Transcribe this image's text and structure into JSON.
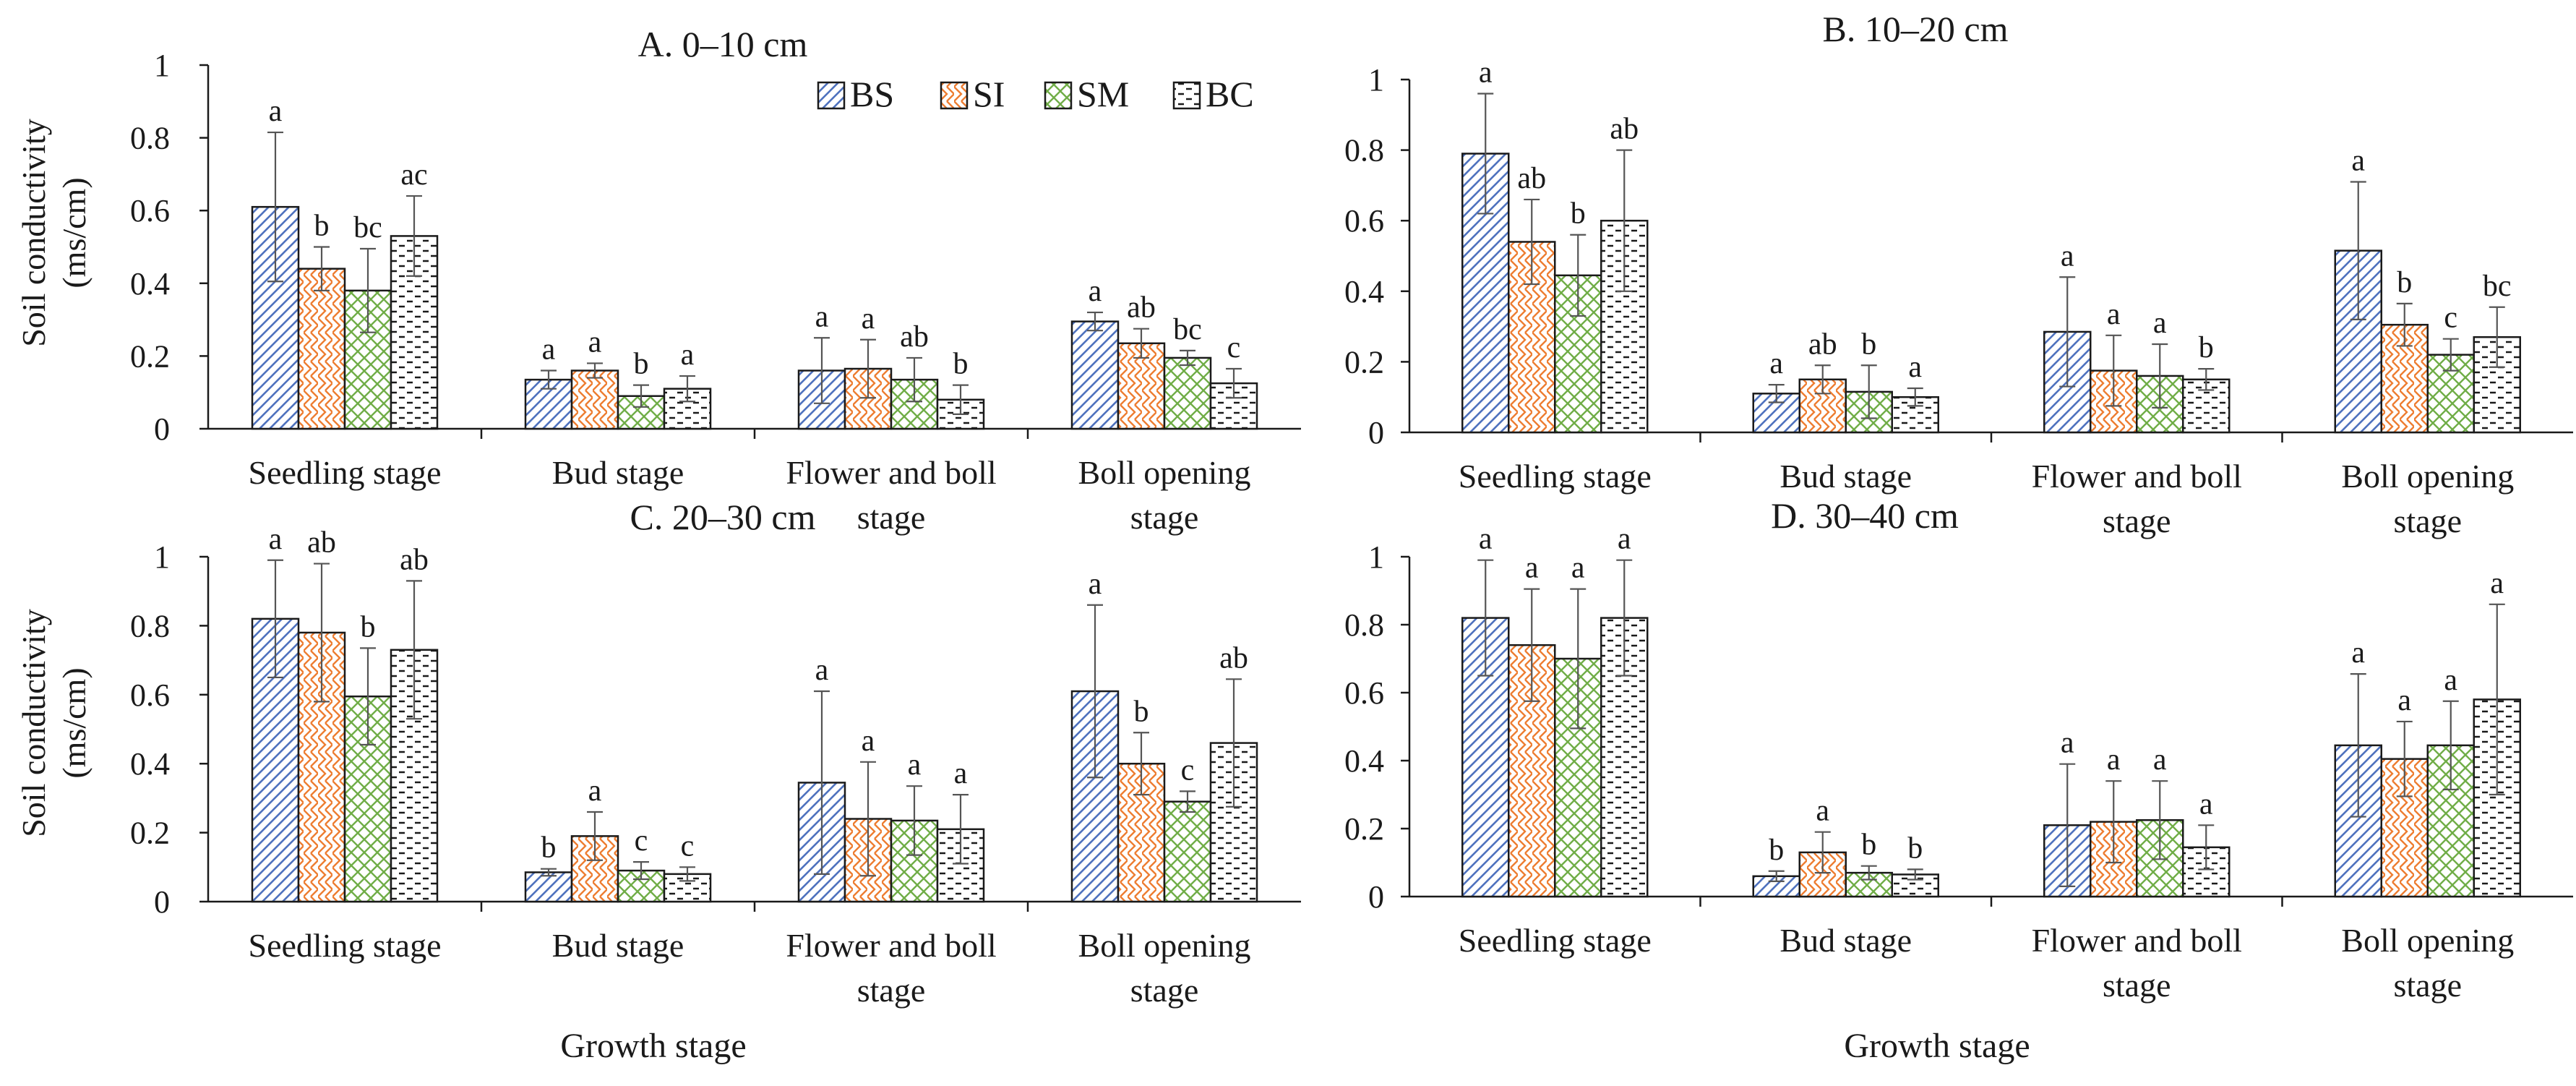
{
  "figure": {
    "ylabel_line1": "Soil conductivity",
    "ylabel_line2": "(ms/cm)",
    "xlabel": "Growth stage"
  },
  "legend": {
    "position": "inside top of panel A",
    "items": [
      {
        "key": "BS",
        "label": "BS",
        "color": "#4f72be",
        "pattern": "diagonal-stripes"
      },
      {
        "key": "SI",
        "label": "SI",
        "color": "#ed7d31",
        "pattern": "zigzag"
      },
      {
        "key": "SM",
        "label": "SM",
        "color": "#70ad47",
        "pattern": "weave"
      },
      {
        "key": "BC",
        "label": "BC",
        "color": "#1a1a1a",
        "pattern": "horizontal-dashes"
      }
    ]
  },
  "chart_data": [
    {
      "type": "bar",
      "title": "A. 0–10 cm",
      "categories": [
        "Seedling stage",
        "Bud stage",
        "Flower and boll stage",
        "Boll opening stage"
      ],
      "ylabel": "Soil conductivity (ms/cm)",
      "xlabel": "",
      "ylim": [
        0,
        1
      ],
      "yticks": [
        0,
        0.2,
        0.4,
        0.6,
        0.8,
        1
      ],
      "ytick_labels": [
        "0",
        "0.2",
        "0.4",
        "0.6",
        "0.8",
        "1"
      ],
      "series": [
        {
          "name": "BS",
          "values": [
            0.61,
            0.135,
            0.16,
            0.295
          ],
          "errors": [
            0.205,
            0.025,
            0.09,
            0.025
          ],
          "letters": [
            "a",
            "a",
            "a",
            "a"
          ]
        },
        {
          "name": "SI",
          "values": [
            0.44,
            0.16,
            0.165,
            0.235
          ],
          "errors": [
            0.06,
            0.02,
            0.08,
            0.04
          ],
          "letters": [
            "b",
            "a",
            "a",
            "ab"
          ]
        },
        {
          "name": "SM",
          "values": [
            0.38,
            0.09,
            0.135,
            0.195
          ],
          "errors": [
            0.115,
            0.03,
            0.06,
            0.02
          ],
          "letters": [
            "bc",
            "b",
            "ab",
            "bc"
          ]
        },
        {
          "name": "BC",
          "values": [
            0.53,
            0.11,
            0.08,
            0.125
          ],
          "errors": [
            0.11,
            0.035,
            0.04,
            0.04
          ],
          "letters": [
            "ac",
            "a",
            "b",
            "c"
          ]
        }
      ]
    },
    {
      "type": "bar",
      "title": "B. 10–20 cm",
      "categories": [
        "Seedling stage",
        "Bud stage",
        "Flower and boll stage",
        "Boll opening stage"
      ],
      "ylabel": "",
      "xlabel": "",
      "ylim": [
        0,
        1
      ],
      "yticks": [
        0,
        0.2,
        0.4,
        0.6,
        0.8,
        1
      ],
      "ytick_labels": [
        "0",
        "0.2",
        "0.4",
        "0.6",
        "0.8",
        "1"
      ],
      "series": [
        {
          "name": "BS",
          "values": [
            0.79,
            0.11,
            0.285,
            0.515
          ],
          "errors": [
            0.17,
            0.025,
            0.155,
            0.195
          ],
          "letters": [
            "a",
            "a",
            "a",
            "a"
          ]
        },
        {
          "name": "SI",
          "values": [
            0.54,
            0.15,
            0.175,
            0.305
          ],
          "errors": [
            0.12,
            0.04,
            0.1,
            0.06
          ],
          "letters": [
            "ab",
            "ab",
            "a",
            "b"
          ]
        },
        {
          "name": "SM",
          "values": [
            0.445,
            0.115,
            0.16,
            0.22
          ],
          "errors": [
            0.115,
            0.075,
            0.09,
            0.045
          ],
          "letters": [
            "b",
            "b",
            "a",
            "c"
          ]
        },
        {
          "name": "BC",
          "values": [
            0.6,
            0.1,
            0.15,
            0.27
          ],
          "errors": [
            0.2,
            0.025,
            0.03,
            0.085
          ],
          "letters": [
            "ab",
            "a",
            "b",
            "bc"
          ]
        }
      ]
    },
    {
      "type": "bar",
      "title": "C. 20–30 cm",
      "categories": [
        "Seedling stage",
        "Bud stage",
        "Flower and boll stage",
        "Boll opening stage"
      ],
      "ylabel": "Soil conductivity (ms/cm)",
      "xlabel": "Growth stage",
      "ylim": [
        0,
        1
      ],
      "yticks": [
        0,
        0.2,
        0.4,
        0.6,
        0.8,
        1
      ],
      "ytick_labels": [
        "0",
        "0.2",
        "0.4",
        "0.6",
        "0.8",
        "1"
      ],
      "series": [
        {
          "name": "BS",
          "values": [
            0.82,
            0.085,
            0.345,
            0.61
          ],
          "errors": [
            0.17,
            0.01,
            0.265,
            0.25
          ],
          "letters": [
            "a",
            "b",
            "a",
            "a"
          ]
        },
        {
          "name": "SI",
          "values": [
            0.78,
            0.19,
            0.24,
            0.4
          ],
          "errors": [
            0.2,
            0.07,
            0.165,
            0.09
          ],
          "letters": [
            "ab",
            "a",
            "a",
            "b"
          ]
        },
        {
          "name": "SM",
          "values": [
            0.595,
            0.09,
            0.235,
            0.29
          ],
          "errors": [
            0.14,
            0.025,
            0.1,
            0.03
          ],
          "letters": [
            "b",
            "c",
            "a",
            "c"
          ]
        },
        {
          "name": "BC",
          "values": [
            0.73,
            0.08,
            0.21,
            0.46
          ],
          "errors": [
            0.2,
            0.02,
            0.1,
            0.185
          ],
          "letters": [
            "ab",
            "c",
            "a",
            "ab"
          ]
        }
      ]
    },
    {
      "type": "bar",
      "title": "D. 30–40 cm",
      "categories": [
        "Seedling stage",
        "Bud stage",
        "Flower and boll stage",
        "Boll opening stage"
      ],
      "ylabel": "",
      "xlabel": "Growth stage",
      "ylim": [
        0,
        1
      ],
      "yticks": [
        0,
        0.2,
        0.4,
        0.6,
        0.8,
        1
      ],
      "ytick_labels": [
        "0",
        "0.2",
        "0.4",
        "0.6",
        "0.8",
        "1"
      ],
      "series": [
        {
          "name": "BS",
          "values": [
            0.82,
            0.06,
            0.21,
            0.445
          ],
          "errors": [
            0.17,
            0.015,
            0.18,
            0.21
          ],
          "letters": [
            "a",
            "b",
            "a",
            "a"
          ]
        },
        {
          "name": "SI",
          "values": [
            0.74,
            0.13,
            0.22,
            0.405
          ],
          "errors": [
            0.165,
            0.06,
            0.12,
            0.11
          ],
          "letters": [
            "a",
            "a",
            "a",
            "a"
          ]
        },
        {
          "name": "SM",
          "values": [
            0.7,
            0.07,
            0.225,
            0.445
          ],
          "errors": [
            0.205,
            0.02,
            0.115,
            0.13
          ],
          "letters": [
            "a",
            "b",
            "a",
            "a"
          ]
        },
        {
          "name": "BC",
          "values": [
            0.82,
            0.065,
            0.145,
            0.58
          ],
          "errors": [
            0.17,
            0.015,
            0.065,
            0.28
          ],
          "letters": [
            "a",
            "b",
            "a",
            "a"
          ]
        }
      ]
    }
  ]
}
